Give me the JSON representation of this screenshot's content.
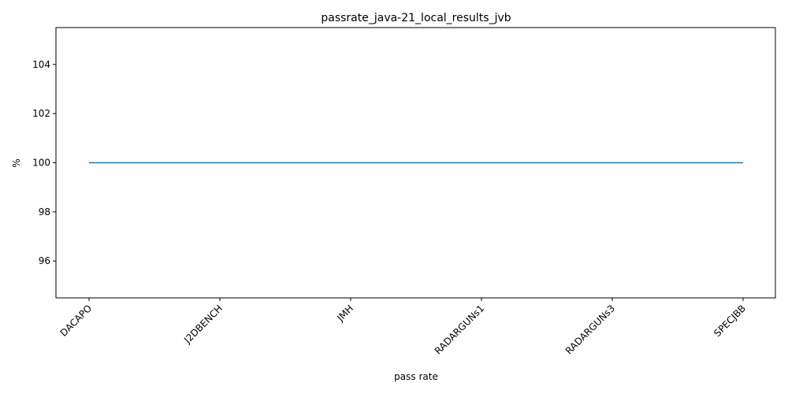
{
  "chart_data": {
    "type": "line",
    "title": "passrate_java-21_local_results_jvb",
    "xlabel": "pass rate",
    "ylabel": "%",
    "categories": [
      "DACAPO",
      "J2DBENCH",
      "JMH",
      "RADARGUNs1",
      "RADARGUNs3",
      "SPECJBB"
    ],
    "series": [
      {
        "values": [
          100,
          100,
          100,
          100,
          100,
          100
        ],
        "color": "#1f77b4"
      }
    ],
    "ylim": [
      94.5,
      105.5
    ],
    "yticks": [
      96,
      98,
      100,
      102,
      104
    ],
    "grid": false,
    "x_tick_rotation": 45
  }
}
